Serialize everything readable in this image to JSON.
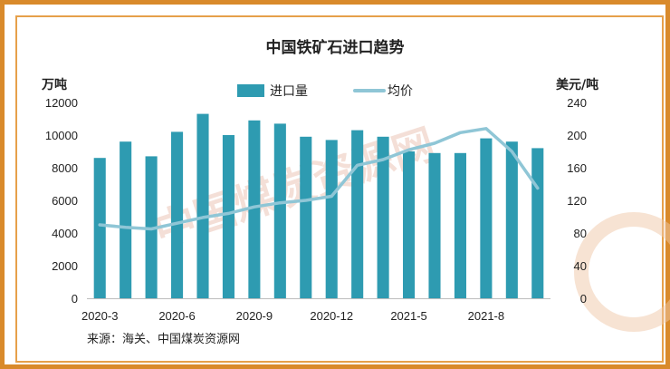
{
  "chart_data": {
    "type": "bar+line",
    "title": "中国铁矿石进口趋势",
    "y_left_label": "万吨",
    "y_right_label": "美元/吨",
    "y_left_lim": [
      0,
      12000
    ],
    "y_right_lim": [
      0,
      240
    ],
    "y_left_ticks": [
      "0",
      "2000",
      "4000",
      "6000",
      "8000",
      "10000",
      "12000"
    ],
    "y_right_ticks": [
      "0",
      "40",
      "80",
      "120",
      "160",
      "200",
      "240"
    ],
    "x_tick_labels": [
      "2020-3",
      "2020-6",
      "2020-9",
      "2020-12",
      "2021-5",
      "2021-8"
    ],
    "x_tick_positions": [
      0,
      3,
      6,
      9,
      12,
      15
    ],
    "legend_placement": "top-center",
    "series": [
      {
        "name": "进口量",
        "type": "bar",
        "axis": "left",
        "color": "#2e9bb1",
        "values": [
          8600,
          9600,
          8700,
          10200,
          11300,
          10000,
          10900,
          10700,
          9900,
          9700,
          10300,
          9900,
          9000,
          8900,
          8900,
          9800,
          9600,
          9200
        ]
      },
      {
        "name": "均价",
        "type": "line",
        "axis": "right",
        "color": "#8fc6d6",
        "values": [
          90,
          87,
          85,
          92,
          99,
          104,
          112,
          117,
          120,
          125,
          163,
          170,
          182,
          190,
          203,
          208,
          180,
          135
        ]
      }
    ],
    "grid": false
  },
  "source_text": "来源：海关、中国煤炭资源网",
  "watermark_text": "中国煤炭资源网"
}
